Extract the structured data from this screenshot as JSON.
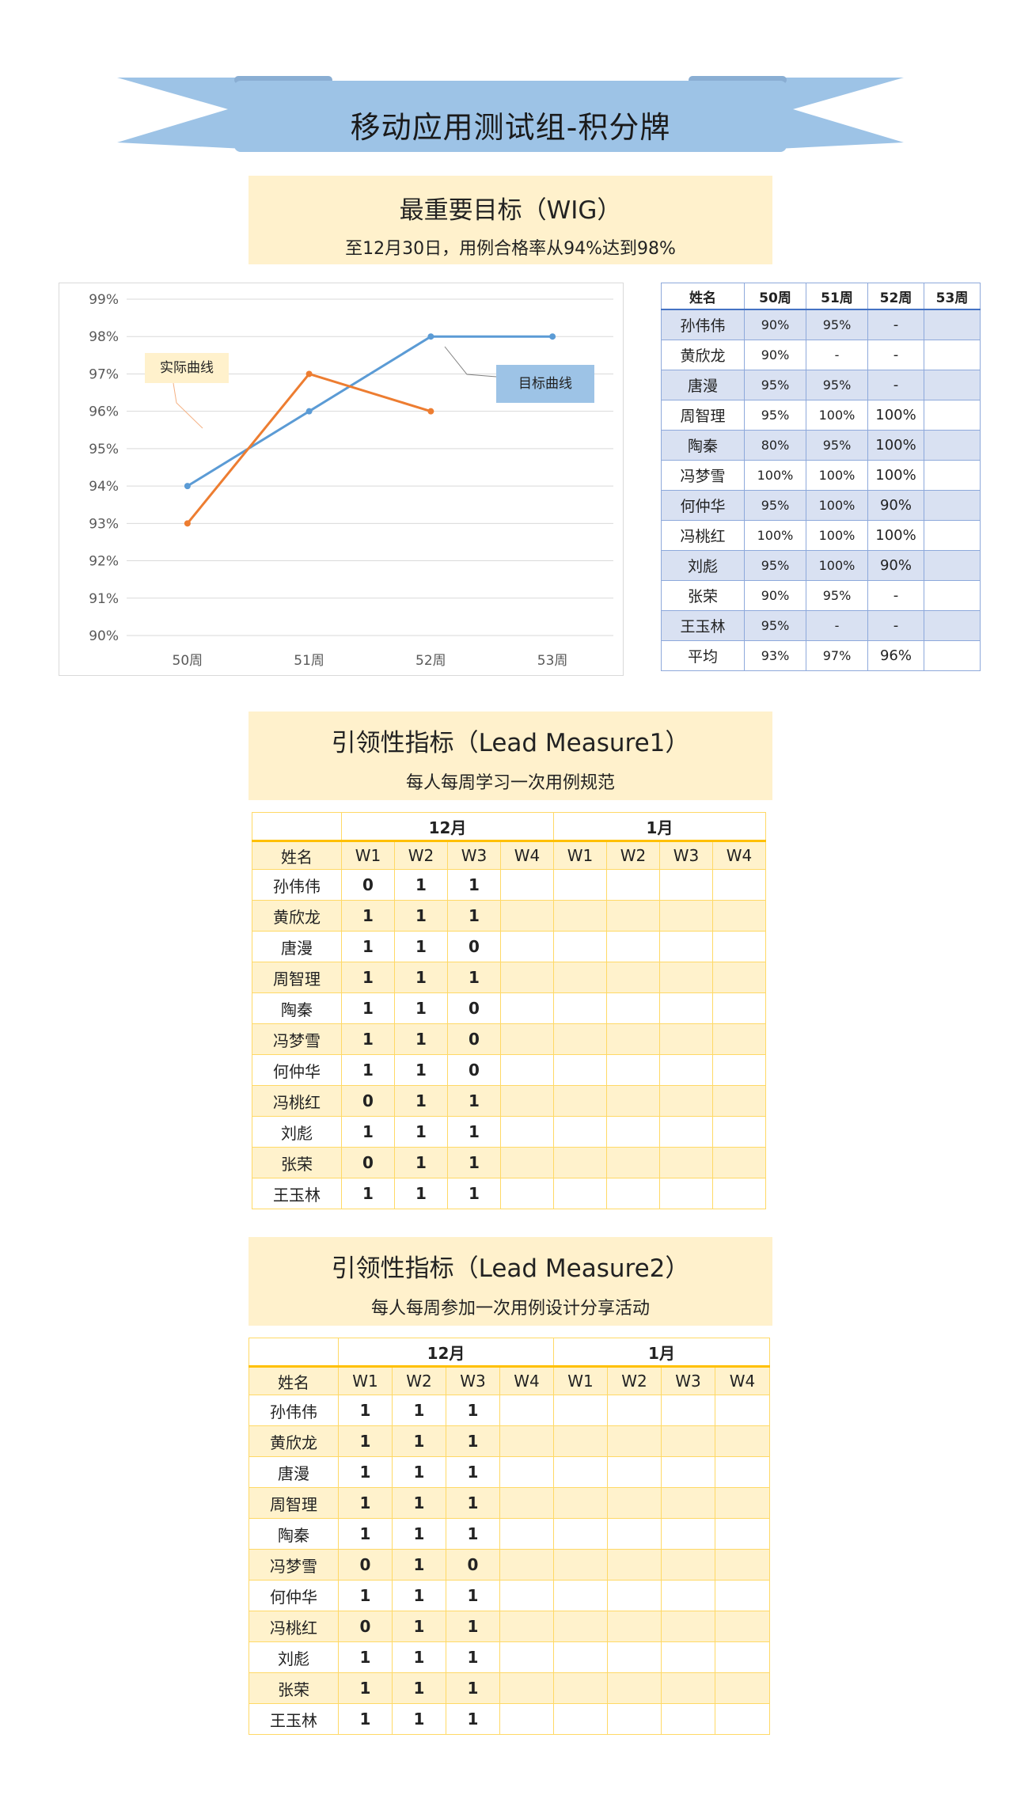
{
  "banner": {
    "title": "移动应用测试组-积分牌"
  },
  "wig": {
    "title": "最重要目标（WIG）",
    "subtitle": "至12月30日，用例合格率从94%达到98%"
  },
  "chart_data": {
    "type": "line",
    "categories": [
      "50周",
      "51周",
      "52周",
      "53周"
    ],
    "series": [
      {
        "name": "目标曲线",
        "color": "#5b9bd5",
        "values": [
          94,
          96,
          98,
          98
        ]
      },
      {
        "name": "实际曲线",
        "color": "#ed7d31",
        "values": [
          93,
          97,
          96,
          null
        ]
      }
    ],
    "ylim": [
      90,
      99
    ],
    "yticks": [
      "90%",
      "91%",
      "92%",
      "93%",
      "94%",
      "95%",
      "96%",
      "97%",
      "98%",
      "99%"
    ],
    "grid": true,
    "annotations": {
      "actual": "实际曲线",
      "target": "目标曲线"
    }
  },
  "score_table": {
    "headers": [
      "姓名",
      "50周",
      "51周",
      "52周",
      "53周"
    ],
    "rows": [
      [
        "孙伟伟",
        "90%",
        "95%",
        "-",
        ""
      ],
      [
        "黄欣龙",
        "90%",
        "-",
        "-",
        ""
      ],
      [
        "唐漫",
        "95%",
        "95%",
        "-",
        ""
      ],
      [
        "周智理",
        "95%",
        "100%",
        "100%",
        ""
      ],
      [
        "陶秦",
        "80%",
        "95%",
        "100%",
        ""
      ],
      [
        "冯梦雪",
        "100%",
        "100%",
        "100%",
        ""
      ],
      [
        "何仲华",
        "95%",
        "100%",
        "90%",
        ""
      ],
      [
        "冯桃红",
        "100%",
        "100%",
        "100%",
        ""
      ],
      [
        "刘彪",
        "95%",
        "100%",
        "90%",
        ""
      ],
      [
        "张荣",
        "90%",
        "95%",
        "-",
        ""
      ],
      [
        "王玉林",
        "95%",
        "-",
        "-",
        ""
      ],
      [
        "平均",
        "93%",
        "97%",
        "96%",
        ""
      ]
    ]
  },
  "lead1": {
    "title": "引领性指标（Lead Measure1）",
    "subtitle": "每人每周学习一次用例规范",
    "months": [
      "12月",
      "1月"
    ],
    "name_header": "姓名",
    "weeks": [
      "W1",
      "W2",
      "W3",
      "W4",
      "W1",
      "W2",
      "W3",
      "W4"
    ],
    "rows": [
      [
        "孙伟伟",
        "0",
        "1",
        "1",
        "",
        "",
        "",
        "",
        ""
      ],
      [
        "黄欣龙",
        "1",
        "1",
        "1",
        "",
        "",
        "",
        "",
        ""
      ],
      [
        "唐漫",
        "1",
        "1",
        "0",
        "",
        "",
        "",
        "",
        ""
      ],
      [
        "周智理",
        "1",
        "1",
        "1",
        "",
        "",
        "",
        "",
        ""
      ],
      [
        "陶秦",
        "1",
        "1",
        "0",
        "",
        "",
        "",
        "",
        ""
      ],
      [
        "冯梦雪",
        "1",
        "1",
        "0",
        "",
        "",
        "",
        "",
        ""
      ],
      [
        "何仲华",
        "1",
        "1",
        "0",
        "",
        "",
        "",
        "",
        ""
      ],
      [
        "冯桃红",
        "0",
        "1",
        "1",
        "",
        "",
        "",
        "",
        ""
      ],
      [
        "刘彪",
        "1",
        "1",
        "1",
        "",
        "",
        "",
        "",
        ""
      ],
      [
        "张荣",
        "0",
        "1",
        "1",
        "",
        "",
        "",
        "",
        ""
      ],
      [
        "王玉林",
        "1",
        "1",
        "1",
        "",
        "",
        "",
        "",
        ""
      ]
    ]
  },
  "lead2": {
    "title": "引领性指标（Lead Measure2）",
    "subtitle": "每人每周参加一次用例设计分享活动",
    "months": [
      "12月",
      "1月"
    ],
    "name_header": "姓名",
    "weeks": [
      "W1",
      "W2",
      "W3",
      "W4",
      "W1",
      "W2",
      "W3",
      "W4"
    ],
    "rows": [
      [
        "孙伟伟",
        "1",
        "1",
        "1",
        "",
        "",
        "",
        "",
        ""
      ],
      [
        "黄欣龙",
        "1",
        "1",
        "1",
        "",
        "",
        "",
        "",
        ""
      ],
      [
        "唐漫",
        "1",
        "1",
        "1",
        "",
        "",
        "",
        "",
        ""
      ],
      [
        "周智理",
        "1",
        "1",
        "1",
        "",
        "",
        "",
        "",
        ""
      ],
      [
        "陶秦",
        "1",
        "1",
        "1",
        "",
        "",
        "",
        "",
        ""
      ],
      [
        "冯梦雪",
        "0",
        "1",
        "0",
        "",
        "",
        "",
        "",
        ""
      ],
      [
        "何仲华",
        "1",
        "1",
        "1",
        "",
        "",
        "",
        "",
        ""
      ],
      [
        "冯桃红",
        "0",
        "1",
        "1",
        "",
        "",
        "",
        "",
        ""
      ],
      [
        "刘彪",
        "1",
        "1",
        "1",
        "",
        "",
        "",
        "",
        ""
      ],
      [
        "张荣",
        "1",
        "1",
        "1",
        "",
        "",
        "",
        "",
        ""
      ],
      [
        "王玉林",
        "1",
        "1",
        "1",
        "",
        "",
        "",
        "",
        ""
      ]
    ]
  }
}
